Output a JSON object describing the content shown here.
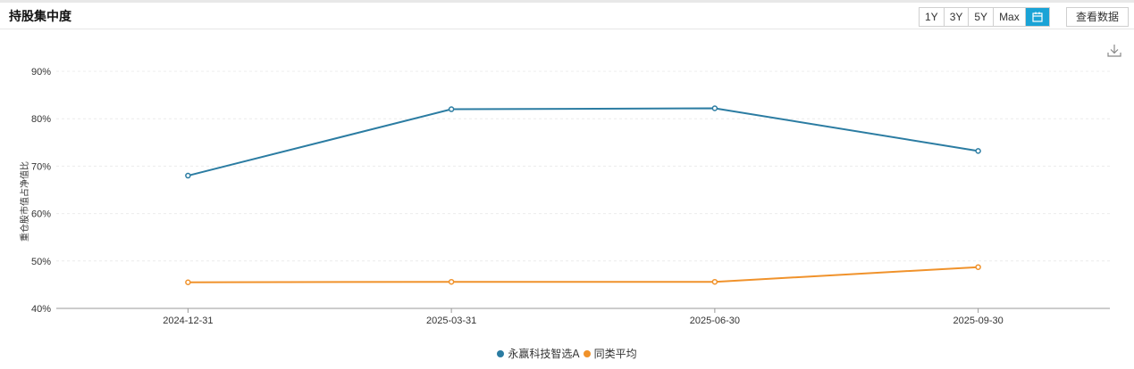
{
  "header": {
    "title": "持股集中度",
    "ranges": [
      "1Y",
      "3Y",
      "5Y",
      "Max"
    ],
    "calendar_icon": "calendar-icon",
    "view_data_label": "查看数据",
    "active_color": "#1aa3d6"
  },
  "toolbar": {
    "download_icon": "download-icon"
  },
  "chart_data": {
    "type": "line",
    "categories": [
      "2024-12-31",
      "2025-03-31",
      "2025-06-30",
      "2025-09-30"
    ],
    "ylabel": "重仓股市值占净值比",
    "ylim": [
      40,
      90
    ],
    "yticks": [
      "40%",
      "50%",
      "60%",
      "70%",
      "80%",
      "90%"
    ],
    "ytick_values": [
      40,
      50,
      60,
      70,
      80,
      90
    ],
    "grid": true,
    "legend_position": "bottom-center",
    "series": [
      {
        "name": "永赢科技智选A",
        "color": "#2b7ca2",
        "values": [
          68.0,
          82.0,
          82.2,
          73.2
        ]
      },
      {
        "name": "同类平均",
        "color": "#f0922b",
        "values": [
          45.5,
          45.6,
          45.6,
          48.7
        ]
      }
    ]
  }
}
